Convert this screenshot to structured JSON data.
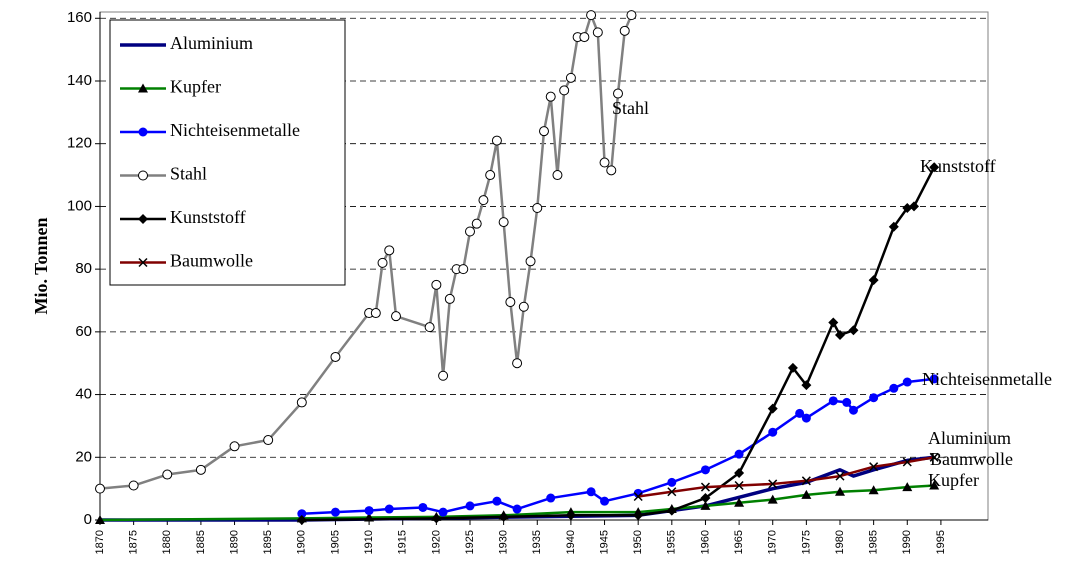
{
  "chart_data": {
    "type": "line",
    "y_label": "Mio. Tonnen",
    "xlim": [
      1870,
      2002
    ],
    "ylim": [
      0,
      162
    ],
    "xticks": [
      1870,
      1875,
      1880,
      1885,
      1890,
      1895,
      1900,
      1905,
      1910,
      1915,
      1920,
      1925,
      1930,
      1935,
      1940,
      1945,
      1950,
      1955,
      1960,
      1965,
      1970,
      1975,
      1980,
      1985,
      1990,
      1995
    ],
    "yticks": [
      0,
      20,
      40,
      60,
      80,
      100,
      120,
      140,
      160
    ],
    "grid": true,
    "legend": "upper left",
    "series": [
      {
        "name": "Aluminium",
        "color": "#000080",
        "marker": "none",
        "x": [
          1870,
          1900,
          1950,
          1960,
          1970,
          1975,
          1980,
          1982,
          1985,
          1990,
          1994
        ],
        "values": [
          0,
          0,
          1.5,
          4.5,
          10,
          12,
          16,
          14,
          16,
          19,
          20
        ]
      },
      {
        "name": "Kupfer",
        "color": "#008000",
        "marker": "triangle",
        "x": [
          1870,
          1900,
          1910,
          1920,
          1930,
          1940,
          1950,
          1955,
          1960,
          1965,
          1970,
          1975,
          1980,
          1985,
          1990,
          1994
        ],
        "values": [
          0,
          0.5,
          0.8,
          1,
          1.5,
          2.5,
          2.5,
          3.5,
          4.5,
          5.5,
          6.5,
          8,
          9,
          9.5,
          10.5,
          11
        ]
      },
      {
        "name": "Nichteisenmetalle",
        "color": "#0000ff",
        "marker": "dot",
        "x": [
          1900,
          1905,
          1910,
          1913,
          1918,
          1921,
          1925,
          1929,
          1932,
          1937,
          1943,
          1945,
          1950,
          1955,
          1960,
          1965,
          1970,
          1974,
          1975,
          1979,
          1981,
          1982,
          1985,
          1988,
          1990,
          1994
        ],
        "values": [
          2,
          2.5,
          3,
          3.5,
          4,
          2.5,
          4.5,
          6,
          3.5,
          7,
          9,
          6,
          8.5,
          12,
          16,
          21,
          28,
          34,
          32.5,
          38,
          37.5,
          35,
          39,
          42,
          44,
          45
        ]
      },
      {
        "name": "Stahl",
        "color": "#808080",
        "marker": "circle",
        "x": [
          1870,
          1875,
          1880,
          1885,
          1890,
          1895,
          1900,
          1905,
          1910,
          1911,
          1912,
          1913,
          1914,
          1919,
          1920,
          1921,
          1922,
          1923,
          1924,
          1925,
          1926,
          1927,
          1928,
          1929,
          1930,
          1931,
          1932,
          1933,
          1934,
          1935,
          1936,
          1937,
          1938,
          1939,
          1940,
          1941,
          1942,
          1943,
          1944,
          1945,
          1946,
          1947,
          1948,
          1949
        ],
        "values": [
          10,
          11,
          14.5,
          16,
          23.5,
          25.5,
          37.5,
          52,
          66,
          66,
          82,
          86,
          65,
          61.5,
          75,
          46,
          70.5,
          80,
          80,
          92,
          94.5,
          102,
          110,
          121,
          95,
          69.5,
          50,
          68,
          82.5,
          99.5,
          124,
          135,
          110,
          137,
          141,
          154,
          154,
          161,
          155.5,
          114,
          111.5,
          136,
          156,
          161
        ]
      },
      {
        "name": "Kunststoff",
        "color": "#000000",
        "marker": "diamond",
        "x": [
          1900,
          1920,
          1930,
          1940,
          1950,
          1955,
          1960,
          1965,
          1970,
          1973,
          1975,
          1979,
          1980,
          1982,
          1985,
          1988,
          1990,
          1991,
          1994
        ],
        "values": [
          0,
          0.5,
          1,
          1.5,
          1.5,
          3,
          7,
          15,
          35.5,
          48.5,
          43,
          63,
          59,
          60.5,
          76.5,
          93.5,
          99.5,
          100,
          112.5
        ]
      },
      {
        "name": "Baumwolle",
        "color": "#800000",
        "marker": "x",
        "x": [
          1950,
          1955,
          1960,
          1965,
          1970,
          1975,
          1980,
          1985,
          1990,
          1994
        ],
        "values": [
          7.5,
          9,
          10.5,
          11,
          11.5,
          12.5,
          14,
          17,
          18.5,
          20
        ]
      }
    ]
  }
}
